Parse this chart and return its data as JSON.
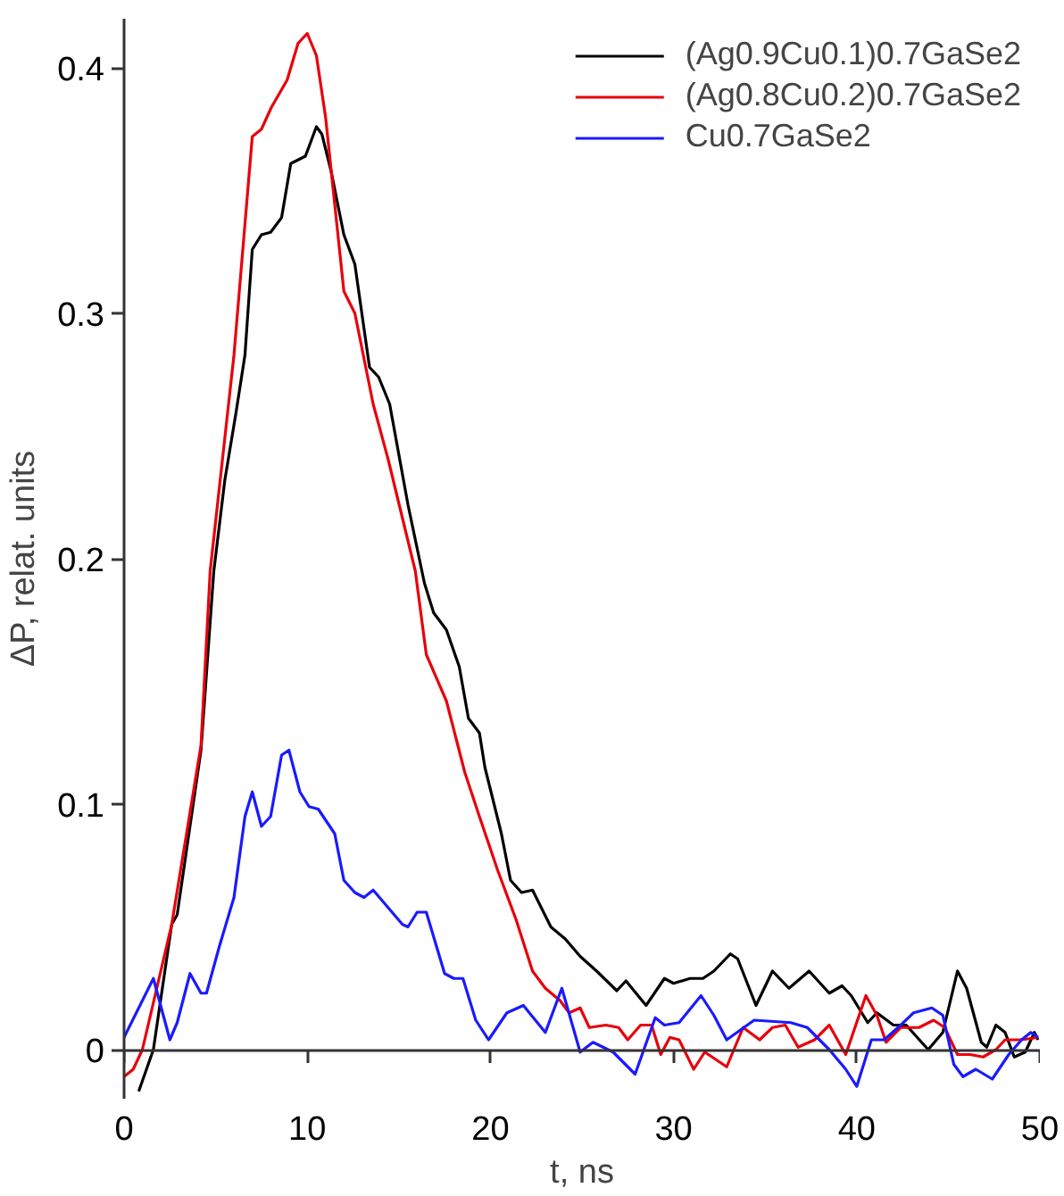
{
  "chart_data": {
    "type": "line",
    "xlabel": "t, ns",
    "ylabel": "ΔP, relat. units",
    "xlim": [
      0,
      50
    ],
    "ylim": [
      -0.02,
      0.42
    ],
    "xticks": [
      0,
      10,
      20,
      30,
      40,
      50
    ],
    "yticks": [
      0,
      0.1,
      0.2,
      0.3,
      0.4
    ],
    "grid": false,
    "legend": "top right",
    "line_style": "solid",
    "marker": "none",
    "series": [
      {
        "name": "(Ag0.9Cu0.1)0.7GaSe2",
        "color": "#000000",
        "x": [
          0.8,
          1.6,
          2.6,
          2.9,
          4.2,
          4.9,
          5.5,
          6.1,
          6.6,
          7.0,
          7.5,
          8.0,
          8.6,
          9.1,
          9.9,
          10.5,
          10.8,
          11.3,
          12.0,
          12.6,
          13.4,
          13.9,
          14.5,
          15.5,
          16.4,
          16.9,
          17.6,
          18.3,
          18.8,
          19.4,
          19.7,
          20.6,
          21.1,
          21.7,
          22.3,
          23.3,
          24.1,
          24.9,
          25.8,
          26.9,
          27.4,
          28.5,
          29.5,
          30.0,
          30.9,
          31.6,
          32.2,
          33.1,
          33.5,
          34.5,
          35.4,
          36.3,
          37.4,
          38.5,
          39.2,
          39.7,
          40.6,
          41.1,
          42.0,
          42.7,
          43.9,
          44.7,
          45.5,
          46.0,
          46.8,
          47.1,
          47.6,
          48.1,
          48.6,
          49.2,
          49.7,
          49.9
        ],
        "values": [
          -0.017,
          0.0,
          0.051,
          0.055,
          0.122,
          0.195,
          0.232,
          0.259,
          0.283,
          0.326,
          0.332,
          0.333,
          0.339,
          0.361,
          0.364,
          0.376,
          0.373,
          0.358,
          0.332,
          0.32,
          0.278,
          0.274,
          0.263,
          0.222,
          0.19,
          0.178,
          0.171,
          0.156,
          0.135,
          0.129,
          0.115,
          0.088,
          0.069,
          0.064,
          0.065,
          0.05,
          0.045,
          0.038,
          0.032,
          0.024,
          0.028,
          0.018,
          0.029,
          0.027,
          0.029,
          0.029,
          0.032,
          0.039,
          0.037,
          0.018,
          0.032,
          0.025,
          0.032,
          0.023,
          0.026,
          0.022,
          0.011,
          0.015,
          0.01,
          0.01,
          0.0,
          0.007,
          0.032,
          0.025,
          0.003,
          0.001,
          0.01,
          0.007,
          -0.003,
          -0.001,
          0.007,
          0.004
        ]
      },
      {
        "name": "(Ag0.8Cu0.2)0.7GaSe2",
        "color": "#e8000b",
        "x": [
          0.0,
          0.5,
          1.0,
          2.6,
          4.2,
          4.7,
          6.0,
          7.0,
          7.5,
          8.05,
          8.9,
          9.5,
          10.0,
          10.5,
          11.0,
          12.0,
          12.6,
          13.6,
          14.4,
          15.9,
          16.5,
          17.6,
          18.6,
          19.4,
          20.4,
          21.4,
          22.3,
          23.0,
          23.8,
          24.3,
          24.9,
          25.4,
          26.3,
          27.0,
          27.5,
          28.2,
          28.8,
          29.3,
          29.8,
          30.3,
          31.1,
          31.7,
          32.9,
          33.8,
          34.7,
          35.4,
          36.1,
          36.8,
          37.7,
          38.5,
          39.4,
          40.5,
          41.1,
          41.6,
          42.4,
          43.4,
          44.2,
          44.8,
          45.5,
          46.2,
          46.9,
          47.6,
          48.1,
          49.0,
          49.9
        ],
        "values": [
          -0.011,
          -0.008,
          0.0,
          0.051,
          0.124,
          0.195,
          0.283,
          0.372,
          0.375,
          0.384,
          0.395,
          0.41,
          0.414,
          0.405,
          0.38,
          0.309,
          0.3,
          0.263,
          0.241,
          0.195,
          0.161,
          0.142,
          0.113,
          0.095,
          0.073,
          0.053,
          0.032,
          0.025,
          0.02,
          0.015,
          0.017,
          0.009,
          0.01,
          0.009,
          0.004,
          0.01,
          0.01,
          -0.002,
          0.005,
          0.004,
          -0.008,
          -0.001,
          -0.007,
          0.009,
          0.004,
          0.009,
          0.01,
          0.001,
          0.004,
          0.01,
          -0.002,
          0.022,
          0.014,
          0.003,
          0.009,
          0.009,
          0.012,
          0.009,
          -0.002,
          -0.002,
          -0.003,
          0.0,
          0.004,
          0.004,
          0.005
        ]
      },
      {
        "name": "Cu0.7GaSe2",
        "color": "#1a1aff",
        "x": [
          0.0,
          1.6,
          2.5,
          2.9,
          3.6,
          4.2,
          4.5,
          5.2,
          6.0,
          6.6,
          7.0,
          7.5,
          8.0,
          8.6,
          9.0,
          9.6,
          10.1,
          10.6,
          11.5,
          12.0,
          12.6,
          13.1,
          13.6,
          14.4,
          15.2,
          15.5,
          16.0,
          16.5,
          17.5,
          18.0,
          18.5,
          19.2,
          19.9,
          20.9,
          21.8,
          23.0,
          23.9,
          24.9,
          25.6,
          26.7,
          27.9,
          29.0,
          29.5,
          30.3,
          31.5,
          32.2,
          32.9,
          34.4,
          36.4,
          37.3,
          38.5,
          39.4,
          40.0,
          40.8,
          41.5,
          42.4,
          43.1,
          44.1,
          44.7,
          45.3,
          45.8,
          46.5,
          47.4,
          48.3,
          49.0,
          49.5,
          49.9
        ],
        "values": [
          0.005,
          0.029,
          0.004,
          0.011,
          0.031,
          0.023,
          0.023,
          0.042,
          0.062,
          0.095,
          0.105,
          0.091,
          0.095,
          0.12,
          0.122,
          0.105,
          0.099,
          0.098,
          0.088,
          0.069,
          0.064,
          0.062,
          0.065,
          0.058,
          0.051,
          0.05,
          0.056,
          0.056,
          0.031,
          0.029,
          0.029,
          0.012,
          0.004,
          0.015,
          0.018,
          0.007,
          0.025,
          -0.001,
          0.003,
          -0.001,
          -0.01,
          0.013,
          0.01,
          0.011,
          0.022,
          0.014,
          0.004,
          0.012,
          0.011,
          0.009,
          0.0,
          -0.008,
          -0.015,
          0.004,
          0.004,
          0.01,
          0.015,
          0.017,
          0.014,
          -0.006,
          -0.011,
          -0.008,
          -0.012,
          -0.002,
          0.004,
          0.007,
          0.005
        ]
      }
    ]
  }
}
